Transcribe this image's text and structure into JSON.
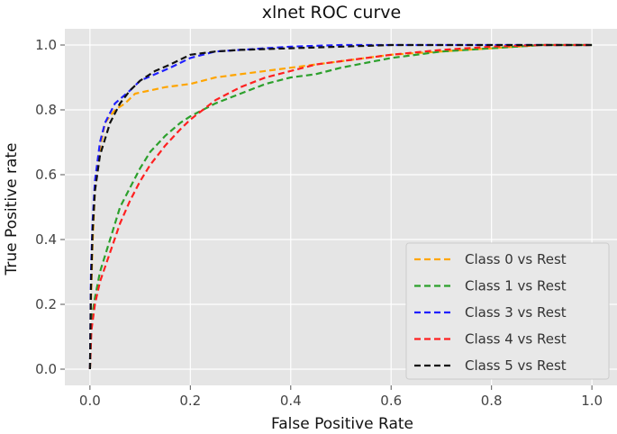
{
  "chart_data": {
    "type": "line",
    "title": "xlnet ROC curve",
    "xlabel": "False Positive Rate",
    "ylabel": "True Positive rate",
    "xlim": [
      -0.05,
      1.05
    ],
    "ylim": [
      -0.05,
      1.05
    ],
    "xticks": [
      0.0,
      0.2,
      0.4,
      0.6,
      0.8,
      1.0
    ],
    "xtick_labels": [
      "0.0",
      "0.2",
      "0.4",
      "0.6",
      "0.8",
      "1.0"
    ],
    "yticks": [
      0.0,
      0.2,
      0.4,
      0.6,
      0.8,
      1.0
    ],
    "ytick_labels": [
      "0.0",
      "0.2",
      "0.4",
      "0.6",
      "0.8",
      "1.0"
    ],
    "grid": true,
    "legend_position": "bottom-right",
    "line_style": "dashed",
    "series": [
      {
        "name": "Class 0 vs Rest",
        "color": "#FFA500",
        "x": [
          0.0,
          0.002,
          0.005,
          0.01,
          0.02,
          0.03,
          0.05,
          0.07,
          0.09,
          0.12,
          0.15,
          0.2,
          0.25,
          0.3,
          0.35,
          0.4,
          0.5,
          0.6,
          0.7,
          0.8,
          0.9,
          1.0
        ],
        "y": [
          0.0,
          0.2,
          0.38,
          0.55,
          0.68,
          0.76,
          0.8,
          0.82,
          0.85,
          0.86,
          0.87,
          0.88,
          0.9,
          0.91,
          0.92,
          0.93,
          0.95,
          0.97,
          0.98,
          0.99,
          1.0,
          1.0
        ]
      },
      {
        "name": "Class 1 vs Rest",
        "color": "#2CA02C",
        "x": [
          0.0,
          0.003,
          0.01,
          0.02,
          0.04,
          0.06,
          0.08,
          0.1,
          0.12,
          0.15,
          0.18,
          0.2,
          0.25,
          0.3,
          0.35,
          0.4,
          0.45,
          0.5,
          0.6,
          0.7,
          0.8,
          0.9,
          1.0
        ],
        "y": [
          0.0,
          0.15,
          0.22,
          0.3,
          0.4,
          0.5,
          0.56,
          0.62,
          0.67,
          0.72,
          0.76,
          0.78,
          0.82,
          0.85,
          0.88,
          0.9,
          0.91,
          0.93,
          0.96,
          0.98,
          0.99,
          1.0,
          1.0
        ]
      },
      {
        "name": "Class 3 vs Rest",
        "color": "#1F1FFF",
        "x": [
          0.0,
          0.002,
          0.005,
          0.01,
          0.02,
          0.03,
          0.05,
          0.08,
          0.1,
          0.13,
          0.16,
          0.2,
          0.25,
          0.3,
          0.4,
          0.5,
          0.6,
          0.8,
          1.0
        ],
        "y": [
          0.0,
          0.3,
          0.45,
          0.58,
          0.7,
          0.76,
          0.82,
          0.86,
          0.89,
          0.91,
          0.93,
          0.96,
          0.98,
          0.985,
          0.995,
          1.0,
          1.0,
          1.0,
          1.0
        ]
      },
      {
        "name": "Class 4 vs Rest",
        "color": "#FF2020",
        "x": [
          0.0,
          0.003,
          0.01,
          0.02,
          0.04,
          0.06,
          0.08,
          0.1,
          0.12,
          0.15,
          0.18,
          0.2,
          0.25,
          0.3,
          0.35,
          0.4,
          0.45,
          0.5,
          0.6,
          0.7,
          0.8,
          0.9,
          1.0
        ],
        "y": [
          0.0,
          0.12,
          0.2,
          0.27,
          0.36,
          0.45,
          0.52,
          0.58,
          0.63,
          0.69,
          0.74,
          0.77,
          0.83,
          0.87,
          0.9,
          0.92,
          0.94,
          0.95,
          0.97,
          0.985,
          0.995,
          1.0,
          1.0
        ]
      },
      {
        "name": "Class 5 vs Rest",
        "color": "#111111",
        "x": [
          0.0,
          0.002,
          0.005,
          0.01,
          0.02,
          0.04,
          0.06,
          0.08,
          0.1,
          0.13,
          0.16,
          0.2,
          0.25,
          0.3,
          0.4,
          0.5,
          0.6,
          0.8,
          1.0
        ],
        "y": [
          0.0,
          0.25,
          0.42,
          0.55,
          0.66,
          0.76,
          0.82,
          0.86,
          0.89,
          0.92,
          0.94,
          0.97,
          0.98,
          0.985,
          0.99,
          0.995,
          1.0,
          1.0,
          1.0
        ]
      }
    ]
  }
}
